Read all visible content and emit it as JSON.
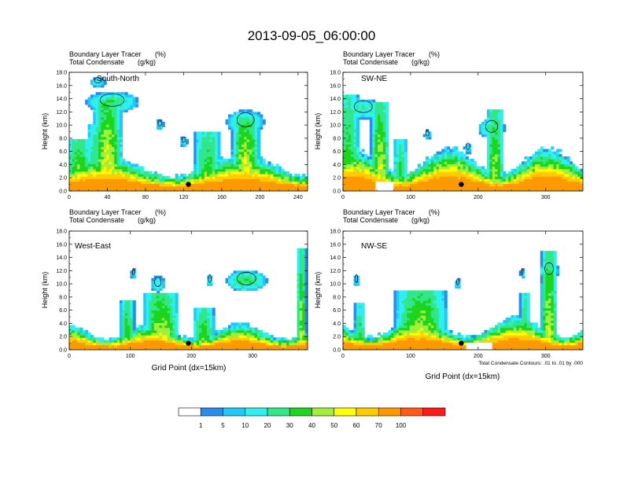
{
  "figure": {
    "title": "2013-09-05_06:00:00",
    "footnote": "Total Condensate Contours: .01 to .01 by .000"
  },
  "colorbar": {
    "labels": [
      "1",
      "5",
      "10",
      "20",
      "30",
      "40",
      "50",
      "60",
      "70",
      "100"
    ],
    "colors": [
      "#ffffff",
      "#2b8cf0",
      "#22c8f8",
      "#2ff0f0",
      "#31e78a",
      "#1cd51c",
      "#a3ee3a",
      "#ffff00",
      "#ffcc00",
      "#ff9900",
      "#ff5a1a",
      "#ff1a1a"
    ]
  },
  "chart_data": [
    {
      "type": "heatmap",
      "label": "South-North",
      "title_left_1": "Boundary Layer Tracer",
      "title_unit_1": "(%)",
      "title_left_2": "Total Condensate",
      "title_unit_2": "(g/kg)",
      "ylabel": "Height (km)",
      "xlabel": "",
      "xlim": [
        0,
        250
      ],
      "ylim": [
        0,
        18
      ],
      "xticks": [
        0,
        40,
        80,
        120,
        160,
        200,
        240
      ],
      "yticks": [
        "0.0",
        "2.0",
        "4.0",
        "6.0",
        "8.0",
        "10.0",
        "12.0",
        "14.0",
        "16.0",
        "18.0"
      ],
      "marker": {
        "x": 125,
        "y": 1.0
      },
      "seed": 11,
      "plumes": [
        {
          "x": 10,
          "w": 14,
          "top": 8.0,
          "v": 45
        },
        {
          "x": 40,
          "w": 16,
          "top": 14.0,
          "v": 55
        },
        {
          "x": 28,
          "w": 10,
          "top": 10.0,
          "v": 35
        },
        {
          "x": 145,
          "w": 14,
          "top": 9.0,
          "v": 40
        },
        {
          "x": 185,
          "w": 15,
          "top": 11.0,
          "v": 55
        }
      ],
      "anvils": [
        {
          "x": 45,
          "y": 13.5,
          "w": 28,
          "h": 1.6,
          "v": 25
        },
        {
          "x": 185,
          "y": 10.5,
          "w": 20,
          "h": 1.8,
          "v": 25
        }
      ],
      "blobs": [
        {
          "x": 95,
          "y": 10.0,
          "w": 4,
          "h": 0.8,
          "v": 10
        },
        {
          "x": 120,
          "y": 7.5,
          "w": 4,
          "h": 0.7,
          "v": 10
        },
        {
          "x": 30,
          "y": 16.5,
          "w": 8,
          "h": 0.7,
          "v": 12
        }
      ],
      "baseh": 2.2,
      "terrain": []
    },
    {
      "type": "heatmap",
      "label": "SW-NE",
      "title_left_1": "Boundary Layer Tracer",
      "title_unit_1": "(%)",
      "title_left_2": "Total Condensate",
      "title_unit_2": "(g/kg)",
      "ylabel": "Height (km)",
      "xlabel": "",
      "xlim": [
        0,
        355
      ],
      "ylim": [
        0,
        18
      ],
      "xticks": [
        0,
        100,
        200,
        300
      ],
      "yticks": [
        "0.0",
        "2.0",
        "4.0",
        "6.0",
        "8.0",
        "10.0",
        "12.0",
        "14.0",
        "16.0",
        "18.0"
      ],
      "marker": {
        "x": 175,
        "y": 1.0
      },
      "seed": 23,
      "plumes": [
        {
          "x": 8,
          "w": 16,
          "top": 14.5,
          "v": 40
        },
        {
          "x": 55,
          "w": 14,
          "top": 13.5,
          "v": 50
        },
        {
          "x": 85,
          "w": 10,
          "top": 8.0,
          "v": 35
        },
        {
          "x": 225,
          "w": 13,
          "top": 12.5,
          "v": 45
        }
      ],
      "anvils": [
        {
          "x": 30,
          "y": 12.5,
          "w": 30,
          "h": 1.5,
          "v": 22
        },
        {
          "x": 220,
          "y": 9.5,
          "w": 20,
          "h": 1.5,
          "v": 22
        }
      ],
      "blobs": [
        {
          "x": 125,
          "y": 8.5,
          "w": 5,
          "h": 0.8,
          "v": 10
        },
        {
          "x": 185,
          "y": 6.5,
          "w": 6,
          "h": 0.8,
          "v": 10
        }
      ],
      "baseh": 2.6,
      "terrain": [
        {
          "x": 60,
          "w": 14,
          "h": 1.6
        }
      ]
    },
    {
      "type": "heatmap",
      "label": "West-East",
      "title_left_1": "Boundary Layer Tracer",
      "title_unit_1": "(%)",
      "title_left_2": "Total Condensate",
      "title_unit_2": "(g/kg)",
      "ylabel": "Height (km)",
      "xlabel": "Grid Point (dx=15km)",
      "xlim": [
        0,
        390
      ],
      "ylim": [
        0,
        18
      ],
      "xticks": [
        0,
        100,
        200,
        300
      ],
      "yticks": [
        "0.0",
        "2.0",
        "4.0",
        "6.0",
        "8.0",
        "10.0",
        "12.0",
        "14.0",
        "16.0",
        "18.0"
      ],
      "marker": {
        "x": 195,
        "y": 1.0
      },
      "seed": 37,
      "plumes": [
        {
          "x": 95,
          "w": 12,
          "top": 7.5,
          "v": 40
        },
        {
          "x": 150,
          "w": 30,
          "top": 8.5,
          "v": 50
        },
        {
          "x": 220,
          "w": 18,
          "top": 6.5,
          "v": 40
        },
        {
          "x": 380,
          "w": 8,
          "top": 15.5,
          "v": 45
        }
      ],
      "anvils": [
        {
          "x": 290,
          "y": 10.5,
          "w": 34,
          "h": 1.6,
          "v": 28
        },
        {
          "x": 145,
          "y": 10.0,
          "w": 12,
          "h": 1.2,
          "v": 15
        }
      ],
      "blobs": [
        {
          "x": 230,
          "y": 10.5,
          "w": 5,
          "h": 1.0,
          "v": 12
        },
        {
          "x": 105,
          "y": 11.5,
          "w": 4,
          "h": 0.8,
          "v": 10
        }
      ],
      "baseh": 1.6,
      "terrain": []
    },
    {
      "type": "heatmap",
      "label": "NW-SE",
      "title_left_1": "Boundary Layer Tracer",
      "title_unit_1": "(%)",
      "title_left_2": "Total Condensate",
      "title_unit_2": "(g/kg)",
      "ylabel": "Height (km)",
      "xlabel": "Grid Point (dx=15km)",
      "xlim": [
        0,
        355
      ],
      "ylim": [
        0,
        18
      ],
      "xticks": [
        0,
        100,
        200,
        300
      ],
      "yticks": [
        "0.0",
        "2.0",
        "4.0",
        "6.0",
        "8.0",
        "10.0",
        "12.0",
        "14.0",
        "16.0",
        "18.0"
      ],
      "marker": {
        "x": 175,
        "y": 1.0
      },
      "seed": 51,
      "plumes": [
        {
          "x": 25,
          "w": 8,
          "top": 7.0,
          "v": 35
        },
        {
          "x": 115,
          "w": 40,
          "top": 9.0,
          "v": 50
        },
        {
          "x": 305,
          "w": 12,
          "top": 15.0,
          "v": 50
        },
        {
          "x": 270,
          "w": 8,
          "top": 8.5,
          "v": 35
        }
      ],
      "anvils": [
        {
          "x": 305,
          "y": 12.0,
          "w": 14,
          "h": 1.5,
          "v": 25
        }
      ],
      "blobs": [
        {
          "x": 20,
          "y": 10.5,
          "w": 4,
          "h": 1.0,
          "v": 10
        },
        {
          "x": 170,
          "y": 10.0,
          "w": 4,
          "h": 0.8,
          "v": 10
        },
        {
          "x": 265,
          "y": 11.5,
          "w": 3,
          "h": 0.8,
          "v": 10
        }
      ],
      "baseh": 2.0,
      "terrain": [
        {
          "x": 200,
          "w": 20,
          "h": 1.0
        }
      ]
    }
  ]
}
